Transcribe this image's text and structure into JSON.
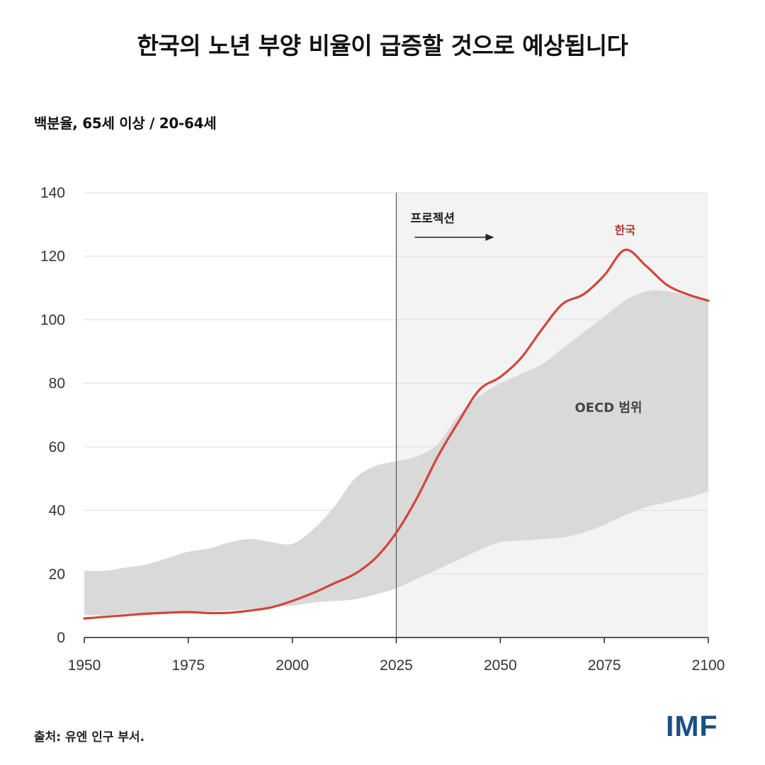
{
  "title": "한국의 노년 부양 비율이 급증할 것으로 예상됩니다",
  "subtitle": "백분율, 65세 이상 / 20-64세",
  "source": "출처: 유엔 인구 부서.",
  "logo": "IMF",
  "colors": {
    "korea_line": "#d0463a",
    "korea_label": "#a83a2e",
    "band_fill": "#d9d9d9",
    "projection_bg": "#f3f3f3",
    "grid": "#dcdcdc",
    "axis": "#222222",
    "divider": "#555555",
    "logo_color": "#1b4f86"
  },
  "chart_data": {
    "type": "area",
    "xlabel": "",
    "ylabel": "",
    "xlim": [
      1950,
      2100
    ],
    "ylim": [
      0,
      140
    ],
    "x_ticks": [
      1950,
      1975,
      2000,
      2025,
      2050,
      2075,
      2100
    ],
    "y_ticks": [
      0,
      20,
      40,
      60,
      80,
      100,
      120,
      140
    ],
    "grid": true,
    "projection_start": 2025,
    "projection_label": "프로젝션",
    "series": [
      {
        "name": "한국",
        "type": "line",
        "x": [
          1950,
          1955,
          1960,
          1965,
          1970,
          1975,
          1980,
          1985,
          1990,
          1995,
          2000,
          2005,
          2010,
          2015,
          2020,
          2025,
          2030,
          2035,
          2040,
          2045,
          2050,
          2055,
          2060,
          2065,
          2070,
          2075,
          2080,
          2085,
          2090,
          2095,
          2100
        ],
        "values": [
          6,
          6.5,
          7,
          7.5,
          7.8,
          8,
          7.7,
          7.8,
          8.5,
          9.5,
          11.5,
          14,
          17,
          20,
          25,
          33,
          44,
          57,
          68,
          78,
          82,
          88,
          97,
          105,
          108,
          114,
          122,
          117,
          111,
          108,
          106
        ]
      },
      {
        "name": "OECD 범위",
        "type": "band",
        "x": [
          1950,
          1955,
          1960,
          1965,
          1970,
          1975,
          1980,
          1985,
          1990,
          1995,
          2000,
          2005,
          2010,
          2015,
          2020,
          2025,
          2030,
          2035,
          2040,
          2045,
          2050,
          2055,
          2060,
          2065,
          2070,
          2075,
          2080,
          2085,
          2090,
          2095,
          2100
        ],
        "lower": [
          7,
          7,
          7.5,
          7.5,
          7.8,
          8,
          8.2,
          8.5,
          9,
          9.5,
          10,
          11,
          11.5,
          12,
          13.5,
          15.5,
          18.5,
          21.5,
          24.5,
          27.5,
          30,
          30.5,
          31,
          31.5,
          33,
          35.5,
          38.5,
          41,
          42.5,
          44,
          46
        ],
        "upper": [
          21,
          21,
          22,
          23,
          25,
          27,
          28,
          30,
          31,
          30,
          29.5,
          34,
          41,
          50,
          54,
          55.5,
          57,
          61,
          70,
          76,
          80,
          83,
          86,
          91,
          96,
          101,
          106,
          109,
          109,
          107.5,
          106
        ]
      }
    ],
    "annotations": [
      {
        "text": "한국",
        "x": 2080,
        "y": 127
      },
      {
        "text": "OECD 범위",
        "x": 2076,
        "y": 71
      }
    ]
  }
}
